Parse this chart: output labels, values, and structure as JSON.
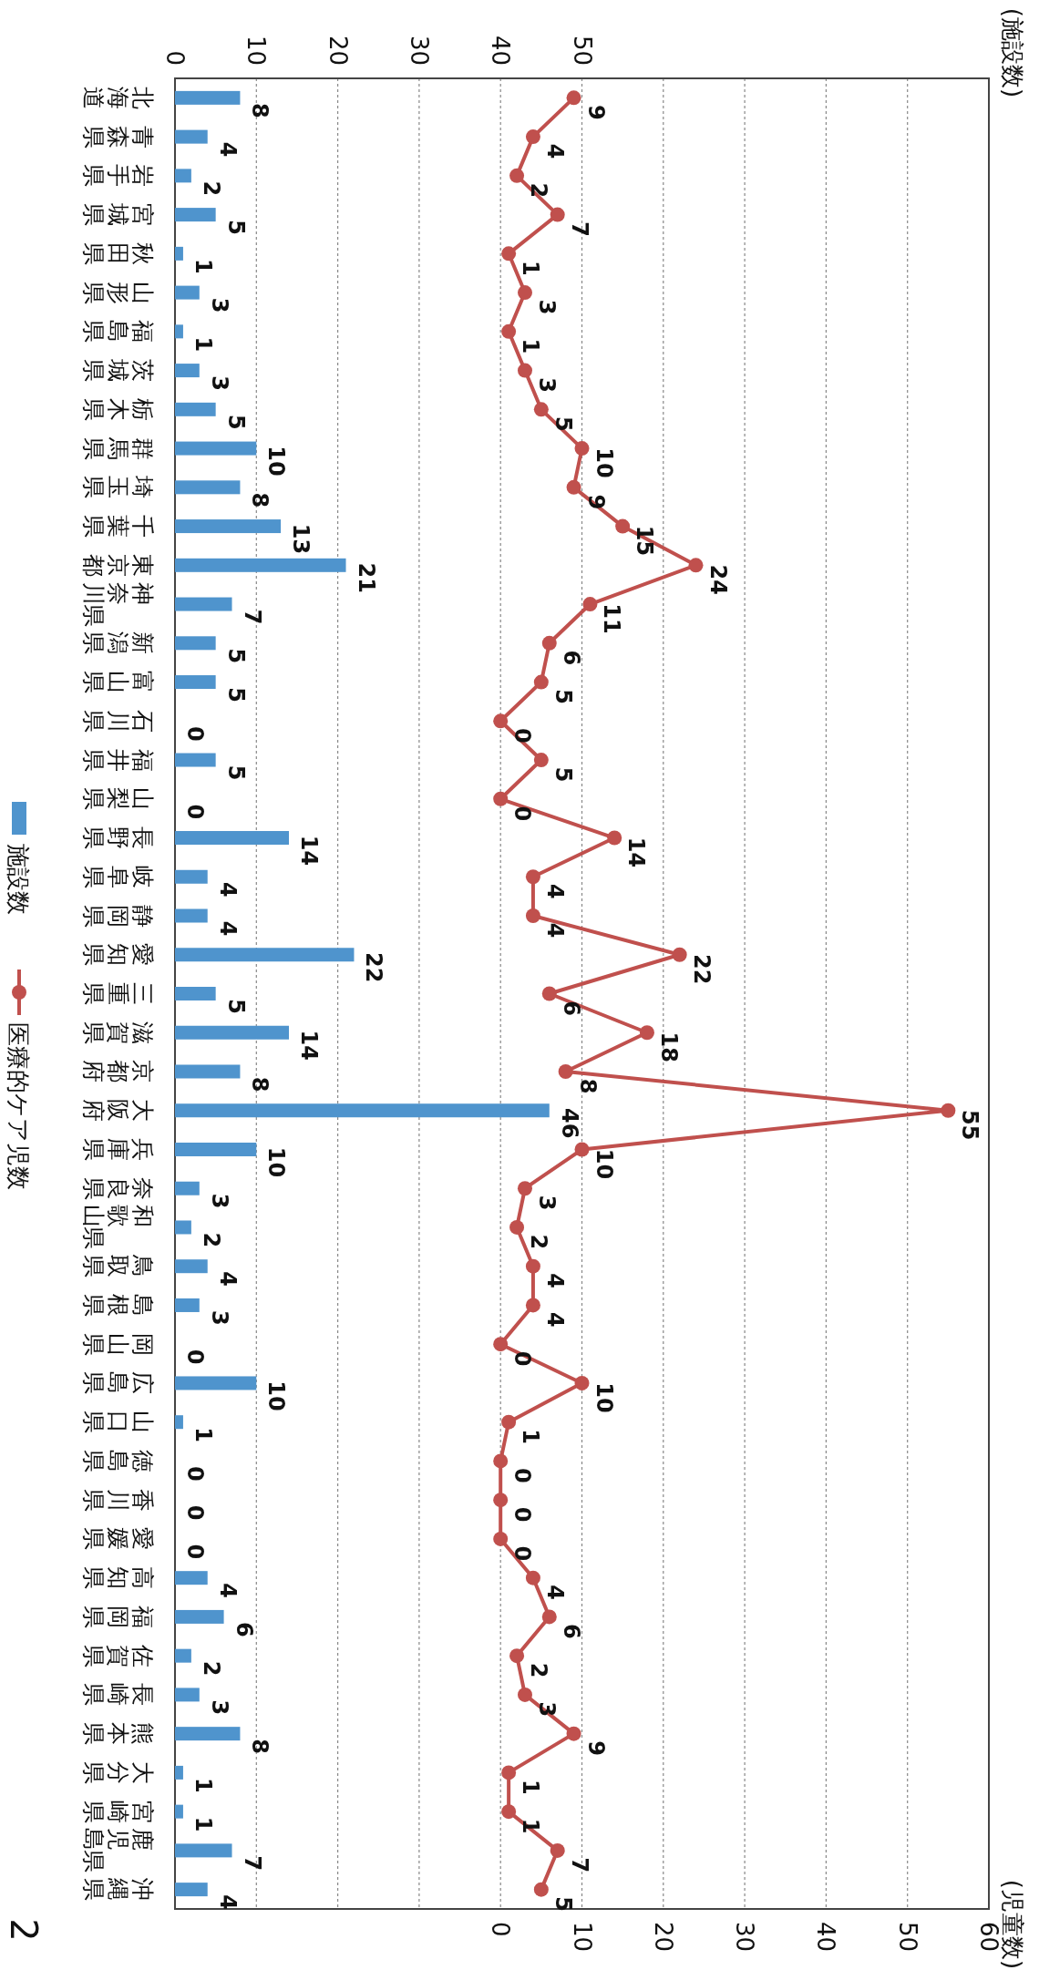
{
  "chart_data": {
    "type": "bar",
    "orientation": "horizontal",
    "categories": [
      "北海道",
      "青森県",
      "岩手県",
      "宮城県",
      "秋田県",
      "山形県",
      "福島県",
      "茨城県",
      "栃木県",
      "群馬県",
      "埼玉県",
      "千葉県",
      "東京都",
      "神奈川県",
      "新潟県",
      "富山県",
      "石川県",
      "福井県",
      "山梨県",
      "長野県",
      "岐阜県",
      "静岡県",
      "愛知県",
      "三重県",
      "滋賀県",
      "京都府",
      "大阪府",
      "兵庫県",
      "奈良県",
      "和歌山県",
      "鳥取県",
      "島根県",
      "岡山県",
      "広島県",
      "山口県",
      "徳島県",
      "香川県",
      "愛媛県",
      "高知県",
      "福岡県",
      "佐賀県",
      "長崎県",
      "熊本県",
      "大分県",
      "宮崎県",
      "鹿児島県",
      "沖縄県"
    ],
    "series": [
      {
        "name": "施設数",
        "axis": "x2",
        "color": "#4f94cd",
        "values": [
          8,
          4,
          2,
          5,
          1,
          3,
          1,
          3,
          5,
          10,
          8,
          13,
          21,
          7,
          5,
          5,
          0,
          5,
          0,
          14,
          4,
          4,
          22,
          5,
          14,
          8,
          46,
          10,
          3,
          2,
          4,
          3,
          0,
          10,
          1,
          0,
          0,
          0,
          4,
          6,
          2,
          3,
          8,
          1,
          1,
          7,
          4
        ]
      },
      {
        "name": "医療的ケア児数",
        "type": "line",
        "marker": "circle",
        "color": "#c0504d",
        "values": [
          9,
          4,
          2,
          7,
          1,
          3,
          1,
          3,
          5,
          10,
          9,
          15,
          24,
          11,
          6,
          5,
          0,
          5,
          0,
          14,
          4,
          4,
          22,
          6,
          18,
          8,
          55,
          10,
          3,
          2,
          4,
          4,
          0,
          10,
          1,
          0,
          0,
          0,
          4,
          6,
          2,
          3,
          9,
          1,
          1,
          7,
          5
        ]
      }
    ],
    "x2label": "(施設数)",
    "x2lim": [
      0,
      100
    ],
    "x2ticks": [
      0,
      10,
      20,
      30,
      40,
      50,
      {
        "value": 60,
        "label": null
      },
      {
        "value": 70,
        "label": null
      },
      {
        "value": 80,
        "label": null
      },
      {
        "value": 90,
        "label": null
      },
      {
        "value": 100,
        "label": null
      }
    ],
    "xlim": [
      -40,
      60
    ],
    "xticks": [
      {
        "value": -40,
        "label": null
      },
      {
        "value": -30,
        "label": null
      },
      {
        "value": -20,
        "label": null
      },
      {
        "value": -10,
        "label": null
      },
      0,
      10,
      20,
      30,
      40,
      50,
      60
    ],
    "grid": "x",
    "legend": "left",
    "data_labels": true,
    "annotations": [
      "(児童数)",
      "2"
    ]
  }
}
